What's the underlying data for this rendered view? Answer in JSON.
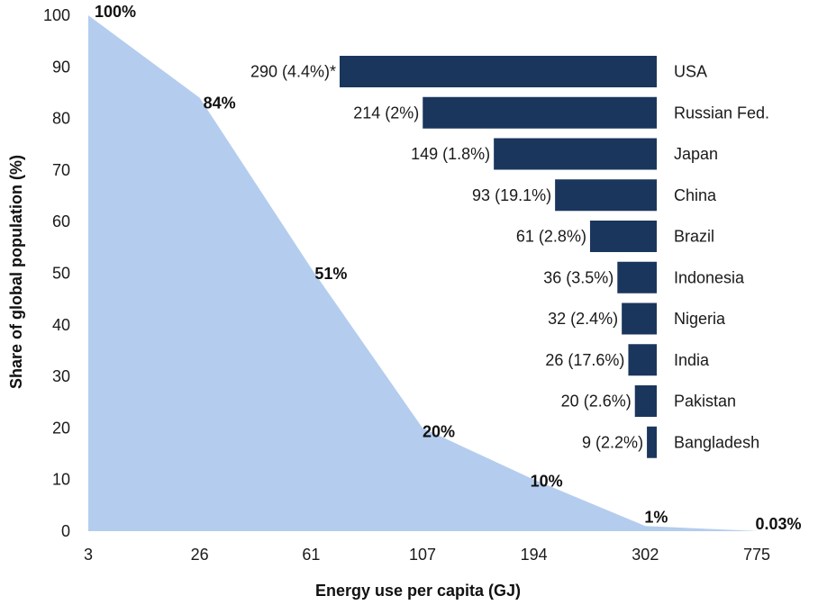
{
  "chart_data": [
    {
      "type": "area",
      "xlabel": "Energy use per capita (GJ)",
      "ylabel": "Share of global population (%)",
      "ylim": [
        0,
        100
      ],
      "yticks": [
        "0",
        "10",
        "20",
        "30",
        "40",
        "50",
        "60",
        "70",
        "80",
        "90",
        "100"
      ],
      "xticks": [
        "3",
        "26",
        "61",
        "107",
        "194",
        "302",
        "775"
      ],
      "grid": false,
      "color": "#b4cdee",
      "series": [
        {
          "x": [
            3,
            26,
            61,
            107,
            194,
            302,
            775
          ],
          "values": [
            100,
            84,
            51,
            20,
            10,
            1,
            0.03
          ],
          "labels": [
            "100%",
            "84%",
            "51%",
            "20%",
            "10%",
            "1%",
            "0.03%"
          ]
        }
      ]
    },
    {
      "type": "bar",
      "orientation": "horizontal",
      "color": "#1b365d",
      "categories": [
        "USA",
        "Russian Fed.",
        "Japan",
        "China",
        "Brazil",
        "Indonesia",
        "Nigeria",
        "India",
        "Pakistan",
        "Bangladesh"
      ],
      "values": [
        290,
        214,
        149,
        93,
        61,
        36,
        32,
        26,
        20,
        9
      ],
      "value_labels": [
        "290 (4.4%)*",
        "214 (2%)",
        "149 (1.8%)",
        "93 (19.1%)",
        "61 (2.8%)",
        "36 (3.5%)",
        "32 (2.4%)",
        "26 (17.6%)",
        "20 (2.6%)",
        "9 (2.2%)"
      ]
    }
  ]
}
